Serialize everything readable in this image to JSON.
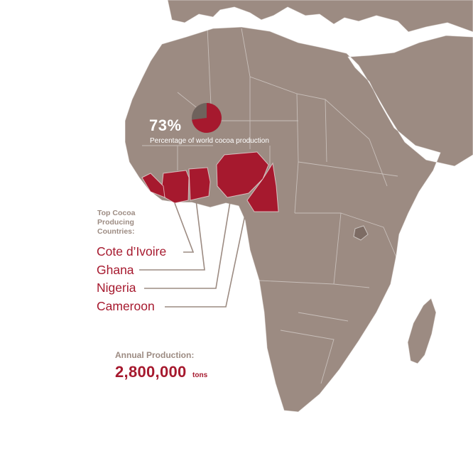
{
  "colors": {
    "land": "#9c8b82",
    "accent": "#a6192e",
    "muted": "#9c8b82",
    "leader_line": "#9c8b82"
  },
  "share": {
    "value": "73%",
    "percent": 73,
    "caption": "Percentage of world cocoa production"
  },
  "producers": {
    "heading": "Top Cocoa\nProducing\nCountries:",
    "countries": [
      "Cote d’Ivoire",
      "Ghana",
      "Nigeria",
      "Cameroon"
    ]
  },
  "annual_production": {
    "label": "Annual Production:",
    "value": "2,800,000",
    "unit": "tons"
  }
}
